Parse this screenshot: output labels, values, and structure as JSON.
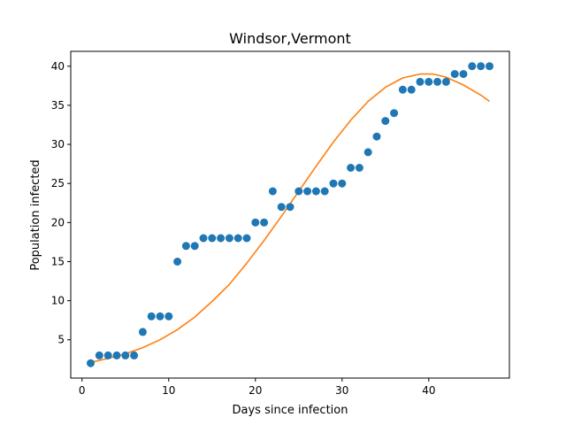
{
  "chart_data": {
    "type": "scatter",
    "title": "Windsor,Vermont",
    "xlabel": "Days since infection",
    "ylabel": "Population infected",
    "xlim": [
      -1.3,
      49.3
    ],
    "ylim": [
      0.1,
      41.9
    ],
    "xticks": [
      0,
      10,
      20,
      30,
      40
    ],
    "yticks": [
      5,
      10,
      15,
      20,
      25,
      30,
      35,
      40
    ],
    "grid": false,
    "series": [
      {
        "type": "scatter",
        "color": "#1f77b4",
        "x": [
          1,
          2,
          3,
          4,
          5,
          6,
          7,
          8,
          9,
          10,
          11,
          12,
          13,
          14,
          15,
          16,
          17,
          18,
          19,
          20,
          21,
          22,
          23,
          24,
          25,
          26,
          27,
          28,
          29,
          30,
          31,
          32,
          33,
          34,
          35,
          36,
          37,
          38,
          39,
          40,
          41,
          42,
          43,
          44,
          45,
          46,
          47
        ],
        "y": [
          2,
          3,
          3,
          3,
          3,
          3,
          6,
          8,
          8,
          8,
          15,
          17,
          17,
          18,
          18,
          18,
          18,
          18,
          18,
          20,
          20,
          24,
          22,
          22,
          24,
          24,
          24,
          24,
          25,
          25,
          27,
          27,
          29,
          31,
          33,
          34,
          37,
          37,
          38,
          38,
          38,
          38,
          39,
          39,
          40,
          40,
          40
        ]
      },
      {
        "type": "line",
        "color": "#ff7f0e",
        "x": [
          1,
          3,
          5,
          7,
          9,
          11,
          13,
          15,
          17,
          19,
          21,
          23,
          25,
          27,
          29,
          31,
          33,
          35,
          37,
          39,
          40.5,
          42,
          44,
          46,
          47
        ],
        "y": [
          2.1,
          2.6,
          3.2,
          4.0,
          5.0,
          6.3,
          7.9,
          9.9,
          12.1,
          14.8,
          17.7,
          20.8,
          24.0,
          27.2,
          30.3,
          33.1,
          35.5,
          37.3,
          38.5,
          39.0,
          39.0,
          38.6,
          37.6,
          36.3,
          35.5
        ]
      }
    ]
  }
}
